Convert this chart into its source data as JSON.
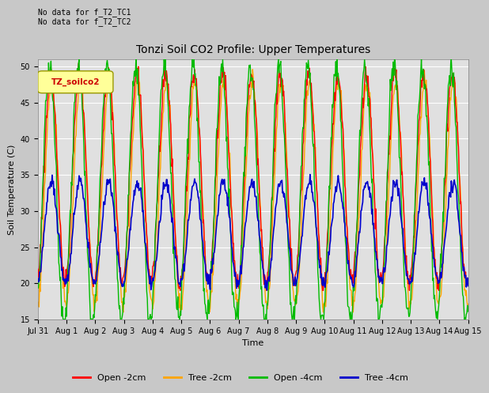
{
  "title": "Tonzi Soil CO2 Profile: Upper Temperatures",
  "xlabel": "Time",
  "ylabel": "Soil Temperature (C)",
  "ylim": [
    15,
    51
  ],
  "yticks": [
    15,
    20,
    25,
    30,
    35,
    40,
    45,
    50
  ],
  "fig_bg_color": "#c8c8c8",
  "plot_bg_color": "#e0e0e0",
  "annotation_top_left": "No data for f_T2_TC1\nNo data for f_T2_TC2",
  "legend_box_label": "TZ_soilco2",
  "series_colors": {
    "open_2cm": "#ff0000",
    "tree_2cm": "#ffa500",
    "open_4cm": "#00bb00",
    "tree_4cm": "#0000cc"
  },
  "legend_labels": [
    "Open -2cm",
    "Tree -2cm",
    "Open -4cm",
    "Tree -4cm"
  ],
  "xtick_labels": [
    "Jul 31",
    "Aug 1",
    "Aug 2",
    "Aug 3",
    "Aug 4",
    "Aug 5",
    "Aug 6",
    "Aug 7",
    "Aug 8",
    "Aug 9",
    "Aug 10",
    "Aug 11",
    "Aug 12",
    "Aug 13",
    "Aug 14",
    "Aug 15"
  ],
  "n_days": 15,
  "points_per_day": 48
}
